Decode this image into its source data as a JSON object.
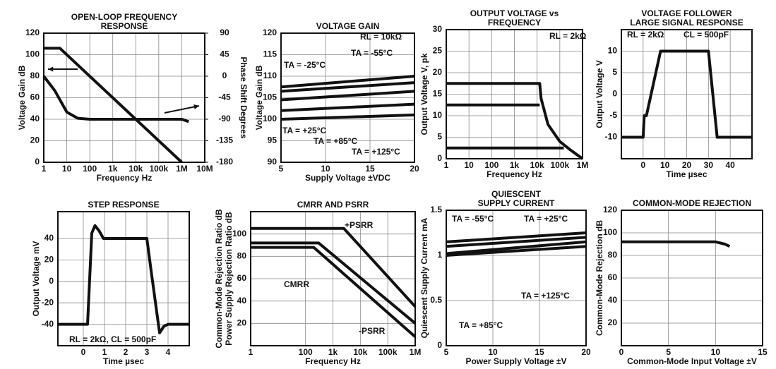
{
  "chart_data": [
    {
      "type": "line",
      "title": [
        "OPEN-LOOP FREQUENCY",
        "RESPONSE"
      ],
      "xlabel": "Frequency  Hz",
      "ylabel": "Voltage Gain  dB",
      "y2label": "Phase Shift  Degrees",
      "xlog": true,
      "xlim": [
        1,
        10000000
      ],
      "xticks": [
        1,
        10,
        100,
        {
          "value": 1000,
          "label": "1k"
        },
        {
          "value": 10000,
          "label": "10k"
        },
        {
          "value": 100000,
          "label": "100k"
        },
        {
          "value": 1000000,
          "label": "1M"
        },
        {
          "value": 10000000,
          "label": "10M"
        }
      ],
      "ylim": [
        0,
        120
      ],
      "yticks": [
        0,
        20,
        40,
        60,
        80,
        100,
        120
      ],
      "y2lim": [
        -180,
        90
      ],
      "y2ticks": [
        -180,
        -135,
        -90,
        -45,
        0,
        45,
        90
      ],
      "grid": true,
      "color": "#111111",
      "series": [
        {
          "x": [
            1,
            5,
            1000000
          ],
          "values": [
            106,
            106,
            0
          ]
        },
        {
          "axis": "y2",
          "x": [
            1,
            3,
            10,
            30,
            100,
            1000000,
            2000000
          ],
          "values": [
            0,
            -30,
            -75,
            -88,
            -90,
            -90,
            -95
          ]
        }
      ]
    },
    {
      "type": "line",
      "title": [
        "VOLTAGE GAIN"
      ],
      "xlabel": "Supply Voltage  ±VDC",
      "ylabel": "Voltage Gain  dB",
      "xlim": [
        5,
        20
      ],
      "xticks": [
        5,
        10,
        15,
        20
      ],
      "ylim": [
        90,
        120
      ],
      "yticks": [
        90,
        95,
        100,
        105,
        110,
        115,
        120
      ],
      "grid": true,
      "color": "#111111",
      "annotations": [
        "RL = 10kΩ"
      ],
      "series": [
        {
          "name": "TA = -55°C",
          "x": [
            5,
            20
          ],
          "values": [
            107.5,
            110
          ]
        },
        {
          "name": "TA = -25°C",
          "x": [
            5,
            20
          ],
          "values": [
            106.5,
            108.5
          ]
        },
        {
          "name": "TA = +25°C",
          "x": [
            5,
            20
          ],
          "values": [
            104.5,
            106.5
          ]
        },
        {
          "name": "TA = +85°C",
          "x": [
            5,
            20
          ],
          "values": [
            102,
            103.5
          ]
        },
        {
          "name": "TA = +125°C",
          "x": [
            5,
            20
          ],
          "values": [
            100,
            101
          ]
        }
      ]
    },
    {
      "type": "line",
      "title": [
        "OUTPUT VOLTAGE vs",
        "FREQUENCY"
      ],
      "xlabel": "Frequency  Hz",
      "ylabel": "Output Voltage  V, pk",
      "xlog": true,
      "xlim": [
        1,
        1000000
      ],
      "xticks": [
        1,
        10,
        100,
        {
          "value": 1000,
          "label": "1k"
        },
        {
          "value": 10000,
          "label": "10k"
        },
        {
          "value": 100000,
          "label": "100k"
        },
        {
          "value": 1000000,
          "label": "1M"
        }
      ],
      "ylim": [
        0,
        30
      ],
      "yticks": [
        0,
        5,
        10,
        15,
        20,
        25,
        30
      ],
      "grid": true,
      "color": "#111111",
      "annotations": [
        "RL = 2kΩ"
      ],
      "series": [
        {
          "x": [
            1,
            13000,
            15000,
            30000,
            100000,
            300000,
            1000000
          ],
          "values": [
            17.5,
            17.5,
            14,
            8,
            4,
            2,
            0
          ]
        },
        {
          "x": [
            1,
            13000
          ],
          "values": [
            12.5,
            12.5
          ]
        },
        {
          "x": [
            1,
            150000
          ],
          "values": [
            2.5,
            2.5
          ]
        }
      ]
    },
    {
      "type": "line",
      "title": [
        "VOLTAGE FOLLOWER",
        "LARGE SIGNAL RESPONSE"
      ],
      "xlabel": "Time  µsec",
      "ylabel": "Output Voltage  V",
      "xlim": [
        -10,
        50
      ],
      "xticks": [
        0,
        10,
        20,
        30,
        40
      ],
      "ylim": [
        -15,
        15
      ],
      "yticks": [
        -10,
        -5,
        0,
        5,
        10
      ],
      "grid": true,
      "color": "#111111",
      "annotations": [
        "RL = 2kΩ",
        "CL = 500pF"
      ],
      "series": [
        {
          "x": [
            -10,
            0,
            0.5,
            1.5,
            8,
            30,
            34,
            50
          ],
          "values": [
            -10,
            -10,
            -5,
            -5,
            10,
            10,
            -10,
            -10
          ]
        }
      ]
    },
    {
      "type": "line",
      "title": [
        "STEP RESPONSE"
      ],
      "xlabel": "Time  µsec",
      "ylabel": "Output Voltage  mV",
      "xlim": [
        -1.2,
        5
      ],
      "xticks": [
        0,
        1,
        2,
        3,
        4
      ],
      "ylim": [
        -60,
        65
      ],
      "yticks": [
        -40,
        -20,
        0,
        20,
        40
      ],
      "grid": true,
      "color": "#111111",
      "annotations": [
        "RL = 2kΩ, CL = 500pF"
      ],
      "series": [
        {
          "x": [
            -1.2,
            0.2,
            0.4,
            0.55,
            0.75,
            0.95,
            3,
            3.2,
            3.6,
            3.8,
            4,
            5
          ],
          "values": [
            -40,
            -40,
            45,
            52,
            47,
            40,
            40,
            10,
            -48,
            -42,
            -40,
            -40
          ]
        }
      ]
    },
    {
      "type": "line",
      "title": [
        "CMRR AND PSRR"
      ],
      "xlabel": "Frequency  Hz",
      "ylabel": [
        "Common-Mode Rejection Ratio  dB",
        "Power Supply Rejection Ratio  dB"
      ],
      "xlog": true,
      "xlim": [
        1,
        1000000
      ],
      "xticks": [
        1,
        100,
        {
          "value": 1000,
          "label": "1k"
        },
        {
          "value": 10000,
          "label": "10k"
        },
        {
          "value": 100000,
          "label": "100k"
        },
        {
          "value": 1000000,
          "label": "1M"
        }
      ],
      "ylim": [
        0,
        120
      ],
      "yticks": [
        20,
        40,
        60,
        80,
        100
      ],
      "grid": true,
      "color": "#111111",
      "series": [
        {
          "name": "+PSRR",
          "x": [
            1,
            2500,
            1000000
          ],
          "values": [
            105,
            105,
            35
          ]
        },
        {
          "name": "CMRR",
          "x": [
            1,
            300,
            1000000
          ],
          "values": [
            92,
            92,
            20
          ]
        },
        {
          "name": "-PSRR",
          "x": [
            1,
            200,
            1000000
          ],
          "values": [
            88,
            88,
            8
          ]
        }
      ]
    },
    {
      "type": "line",
      "title": [
        "QUIESCENT",
        "SUPPLY CURRENT"
      ],
      "xlabel": "Power Supply Voltage  ±V",
      "ylabel": "Quiescent Supply Current  mA",
      "xlim": [
        5,
        20
      ],
      "xticks": [
        5,
        10,
        15,
        20
      ],
      "ylim": [
        0,
        1.5
      ],
      "yticks": [
        0,
        0.5,
        1,
        1.5
      ],
      "grid": true,
      "color": "#111111",
      "series": [
        {
          "name": "TA = -55°C",
          "x": [
            5,
            20
          ],
          "values": [
            1.15,
            1.25
          ]
        },
        {
          "name": "TA = +25°C",
          "x": [
            5,
            20
          ],
          "values": [
            1.1,
            1.2
          ]
        },
        {
          "name": "TA = +85°C",
          "x": [
            5,
            20
          ],
          "values": [
            1.02,
            1.15
          ]
        },
        {
          "name": "TA = +125°C",
          "x": [
            5,
            20
          ],
          "values": [
            1,
            1.1
          ]
        }
      ]
    },
    {
      "type": "line",
      "title": [
        "COMMON-MODE REJECTION"
      ],
      "xlabel": "Common-Mode Input Voltage  ±V",
      "ylabel": "Common-Mode Rejection  dB",
      "xlim": [
        0,
        15
      ],
      "xticks": [
        0,
        5,
        10,
        15
      ],
      "ylim": [
        0,
        120
      ],
      "yticks": [
        20,
        40,
        60,
        80,
        100,
        120
      ],
      "grid": true,
      "color": "#111111",
      "series": [
        {
          "x": [
            0,
            10,
            11,
            11.5
          ],
          "values": [
            92,
            92,
            90,
            88
          ]
        }
      ]
    }
  ]
}
